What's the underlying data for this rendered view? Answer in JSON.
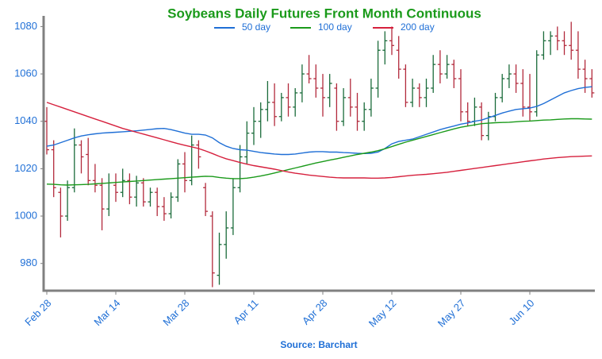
{
  "chart_data": {
    "type": "ohlc",
    "title": "Soybeans Daily Futures Front Month Continuous",
    "source": "Source: Barchart",
    "categories": [
      "Feb 28",
      null,
      null,
      null,
      null,
      null,
      null,
      null,
      null,
      null,
      "Mar 14",
      null,
      null,
      null,
      null,
      null,
      null,
      null,
      null,
      null,
      "Mar 28",
      null,
      null,
      null,
      null,
      null,
      null,
      null,
      null,
      null,
      "Apr 11",
      null,
      null,
      null,
      null,
      null,
      null,
      null,
      null,
      null,
      "Apr 28",
      null,
      null,
      null,
      null,
      null,
      null,
      null,
      null,
      null,
      "May 12",
      null,
      null,
      null,
      null,
      null,
      null,
      null,
      null,
      null,
      "May 27",
      null,
      null,
      null,
      null,
      null,
      null,
      null,
      null,
      null,
      "Jun 10",
      null,
      null,
      null,
      null,
      null,
      null,
      null,
      null,
      null
    ],
    "ohlc": {
      "up_color": "#1a6b3a",
      "down_color": "#b22a3c",
      "open": [
        1040,
        1028,
        1010,
        1000,
        1012,
        1030,
        1026,
        1015,
        1013,
        1003,
        1013,
        1010,
        1015,
        1008,
        1014,
        1006,
        1010,
        1004,
        1001,
        1008,
        1022,
        1015,
        1030,
        1012,
        1000,
        975,
        988,
        995,
        1012,
        1025,
        1035,
        1040,
        1045,
        1048,
        1042,
        1050,
        1046,
        1052,
        1060,
        1058,
        1054,
        1050,
        1054,
        1040,
        1050,
        1046,
        1040,
        1045,
        1054,
        1070,
        1074,
        1070,
        1062,
        1048,
        1054,
        1050,
        1054,
        1064,
        1060,
        1064,
        1058,
        1044,
        1040,
        1046,
        1034,
        1042,
        1050,
        1058,
        1060,
        1056,
        1046,
        1044,
        1068,
        1074,
        1076,
        1074,
        1072,
        1070,
        1062,
        1058
      ],
      "high": [
        1046,
        1032,
        1012,
        1015,
        1037,
        1032,
        1033,
        1022,
        1016,
        1018,
        1018,
        1020,
        1018,
        1017,
        1016,
        1012,
        1012,
        1008,
        1010,
        1024,
        1027,
        1034,
        1032,
        1014,
        1002,
        993,
        1002,
        1016,
        1030,
        1040,
        1046,
        1048,
        1057,
        1056,
        1052,
        1056,
        1054,
        1064,
        1068,
        1064,
        1060,
        1060,
        1056,
        1054,
        1058,
        1052,
        1048,
        1058,
        1074,
        1078,
        1080,
        1076,
        1064,
        1058,
        1056,
        1058,
        1068,
        1070,
        1068,
        1066,
        1062,
        1048,
        1050,
        1048,
        1044,
        1052,
        1060,
        1064,
        1064,
        1062,
        1060,
        1070,
        1078,
        1078,
        1080,
        1078,
        1082,
        1078,
        1066,
        1062
      ],
      "low": [
        1026,
        1008,
        991,
        998,
        1010,
        1018,
        1013,
        1010,
        994,
        1000,
        1006,
        1008,
        1005,
        1004,
        1004,
        1004,
        1000,
        998,
        999,
        1006,
        1010,
        1013,
        1020,
        1000,
        970,
        971,
        982,
        992,
        1010,
        1022,
        1030,
        1033,
        1040,
        1038,
        1040,
        1042,
        1042,
        1048,
        1056,
        1050,
        1042,
        1046,
        1036,
        1038,
        1042,
        1036,
        1036,
        1042,
        1050,
        1064,
        1068,
        1058,
        1046,
        1046,
        1046,
        1046,
        1052,
        1056,
        1058,
        1054,
        1040,
        1038,
        1038,
        1032,
        1032,
        1040,
        1048,
        1054,
        1052,
        1042,
        1040,
        1042,
        1066,
        1068,
        1070,
        1068,
        1066,
        1058,
        1052,
        1050
      ],
      "close": [
        1028,
        1012,
        1000,
        1012,
        1030,
        1025,
        1015,
        1013,
        1003,
        1014,
        1010,
        1015,
        1008,
        1014,
        1006,
        1010,
        1004,
        1001,
        1008,
        1022,
        1015,
        1030,
        1025,
        1002,
        976,
        988,
        995,
        1012,
        1025,
        1035,
        1040,
        1045,
        1048,
        1042,
        1050,
        1046,
        1052,
        1060,
        1058,
        1054,
        1050,
        1056,
        1040,
        1050,
        1046,
        1040,
        1045,
        1054,
        1070,
        1074,
        1072,
        1062,
        1048,
        1054,
        1050,
        1054,
        1064,
        1060,
        1064,
        1058,
        1044,
        1040,
        1046,
        1034,
        1042,
        1050,
        1058,
        1060,
        1056,
        1046,
        1044,
        1068,
        1074,
        1076,
        1074,
        1072,
        1070,
        1062,
        1058,
        1052
      ]
    },
    "series": [
      {
        "name": "50 day",
        "color": "#1f6fd6",
        "values": [
          1029.5,
          1030,
          1031,
          1032,
          1033,
          1033.8,
          1034.3,
          1034.7,
          1035,
          1035.2,
          1035.4,
          1035.6,
          1035.8,
          1036,
          1036.3,
          1036.6,
          1036.9,
          1037,
          1036.5,
          1035.8,
          1035,
          1034.5,
          1034.5,
          1034.2,
          1033,
          1031,
          1029.5,
          1028.5,
          1028,
          1027.8,
          1027.3,
          1026.8,
          1026.5,
          1026.2,
          1026,
          1026,
          1026.2,
          1026.6,
          1027,
          1027.2,
          1027.2,
          1027,
          1027,
          1026.8,
          1026.7,
          1026.5,
          1026.4,
          1026.5,
          1027,
          1028.5,
          1030.5,
          1031.5,
          1032,
          1032.5,
          1033.5,
          1034.5,
          1035.5,
          1036.5,
          1037.3,
          1038,
          1038.8,
          1039.3,
          1040,
          1040.5,
          1041.5,
          1042.5,
          1043.5,
          1044.3,
          1045,
          1045.3,
          1045.6,
          1046.3,
          1047.5,
          1049,
          1050.5,
          1052,
          1053,
          1053.8,
          1054.3,
          1054.6
        ]
      },
      {
        "name": "100 day",
        "color": "#1a9a1a",
        "values": [
          1013.5,
          1013.4,
          1013.2,
          1013.1,
          1013.2,
          1013.3,
          1013.4,
          1013.6,
          1013.8,
          1014,
          1014.2,
          1014.4,
          1014.6,
          1014.8,
          1015,
          1015.2,
          1015.4,
          1015.6,
          1015.8,
          1016,
          1016.2,
          1016.4,
          1016.6,
          1016.8,
          1016.7,
          1016.3,
          1016,
          1015.8,
          1015.8,
          1016,
          1016.4,
          1016.9,
          1017.5,
          1018.2,
          1018.9,
          1019.6,
          1020.3,
          1021,
          1021.7,
          1022.4,
          1023,
          1023.6,
          1024.2,
          1024.8,
          1025.4,
          1026,
          1026.5,
          1027,
          1027.6,
          1028.4,
          1029.3,
          1030.3,
          1031.2,
          1032,
          1032.8,
          1033.6,
          1034.4,
          1035.2,
          1036,
          1036.8,
          1037.5,
          1038,
          1038.5,
          1039,
          1039.2,
          1039.4,
          1039.5,
          1039.6,
          1039.8,
          1040,
          1040.1,
          1040.3,
          1040.5,
          1040.6,
          1040.8,
          1041,
          1041.1,
          1041.1,
          1041,
          1040.9
        ]
      },
      {
        "name": "200 day",
        "color": "#d6203d",
        "values": [
          1048,
          1047,
          1046,
          1045,
          1044,
          1043,
          1042,
          1041,
          1040,
          1039,
          1038,
          1037,
          1036.2,
          1035.4,
          1034.6,
          1033.8,
          1033,
          1032.2,
          1031.4,
          1030.6,
          1029.9,
          1029.2,
          1028.5,
          1027.5,
          1026.4,
          1025.2,
          1024.2,
          1023.4,
          1022.6,
          1021.9,
          1021.3,
          1020.8,
          1020.3,
          1019.8,
          1019.2,
          1018.6,
          1018.1,
          1017.7,
          1017.3,
          1017,
          1016.7,
          1016.4,
          1016.2,
          1016.1,
          1016.1,
          1016.1,
          1016.1,
          1016,
          1016,
          1016.1,
          1016.3,
          1016.6,
          1016.9,
          1017.2,
          1017.4,
          1017.6,
          1017.9,
          1018.2,
          1018.5,
          1018.9,
          1019.3,
          1019.7,
          1020.1,
          1020.5,
          1020.9,
          1021.3,
          1021.7,
          1022.1,
          1022.5,
          1022.9,
          1023.3,
          1023.7,
          1024.1,
          1024.4,
          1024.7,
          1024.9,
          1025.1,
          1025.2,
          1025.3,
          1025.4
        ]
      }
    ],
    "ylim": [
      968.5,
      1084.5
    ],
    "yticks": [
      980,
      1000,
      1020,
      1040,
      1060,
      1080
    ],
    "grid": false,
    "legend": "top"
  }
}
